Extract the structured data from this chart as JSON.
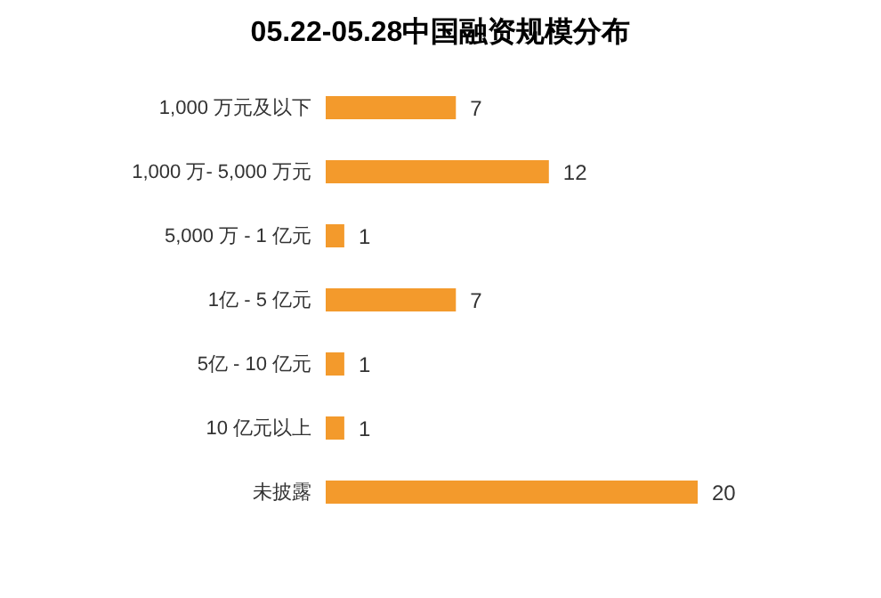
{
  "chart_data": {
    "type": "bar",
    "orientation": "horizontal",
    "title": "05.22-05.28中国融资规模分布",
    "categories": [
      "1,000 万元及以下",
      "1,000 万- 5,000 万元",
      "5,000 万 - 1 亿元",
      "1亿 - 5 亿元",
      "5亿 - 10 亿元",
      "10 亿元以上",
      "未披露"
    ],
    "values": [
      7,
      12,
      1,
      7,
      1,
      1,
      20
    ],
    "color": "#f39a2c",
    "data_labels": true,
    "grid": false,
    "legend": false
  }
}
